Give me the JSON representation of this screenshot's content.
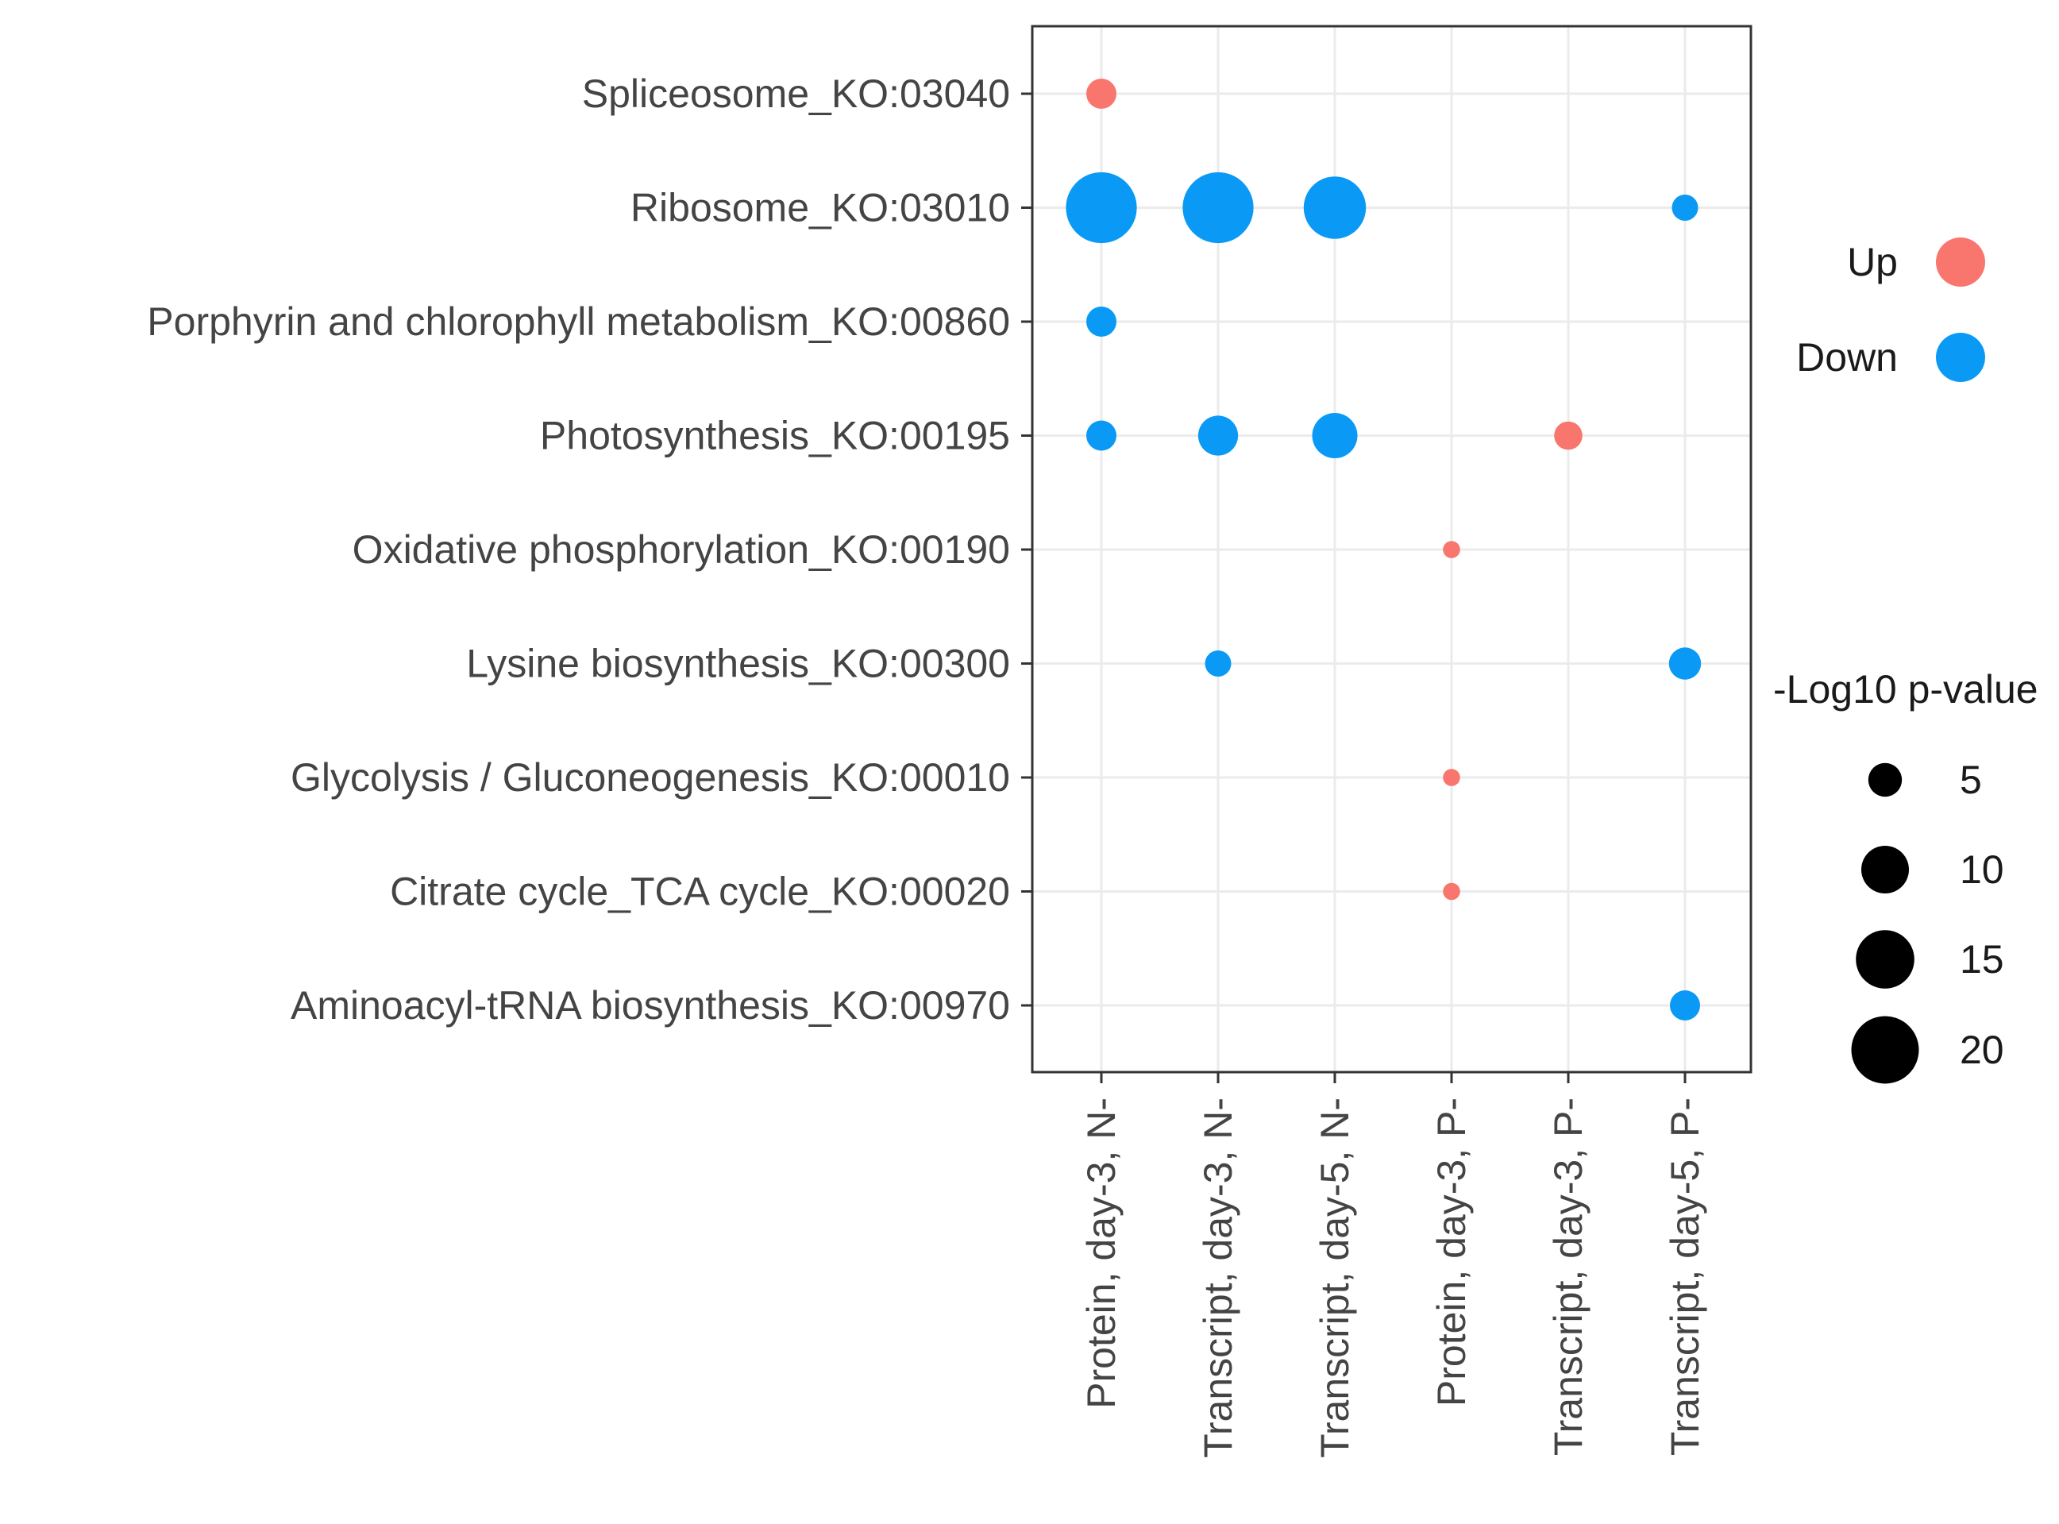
{
  "chart_data": {
    "type": "scatter",
    "title": "",
    "xlabel": "",
    "ylabel": "",
    "grid": true,
    "x_categories": [
      "Protein, day-3, N-",
      "Transcript, day-3, N-",
      "Transcript, day-5, N-",
      "Protein, day-3, P-",
      "Transcript, day-3, P-",
      "Transcript, day-5, P-"
    ],
    "y_categories": [
      "Spliceosome_KO:03040",
      "Ribosome_KO:03010",
      "Porphyrin and chlorophyll metabolism_KO:00860",
      "Photosynthesis_KO:00195",
      "Oxidative phosphorylation_KO:00190",
      "Lysine biosynthesis_KO:00300",
      "Glycolysis / Gluconeogenesis_KO:00010",
      "Citrate cycle_TCA cycle_KO:00020",
      "Aminoacyl-tRNA biosynthesis_KO:00970"
    ],
    "points": [
      {
        "x": "Protein, day-3, N-",
        "y": "Spliceosome_KO:03040",
        "direction": "Up",
        "neg_log10_p": 4
      },
      {
        "x": "Protein, day-3, N-",
        "y": "Ribosome_KO:03010",
        "direction": "Down",
        "neg_log10_p": 22
      },
      {
        "x": "Transcript, day-3, N-",
        "y": "Ribosome_KO:03010",
        "direction": "Down",
        "neg_log10_p": 22
      },
      {
        "x": "Transcript, day-5, N-",
        "y": "Ribosome_KO:03010",
        "direction": "Down",
        "neg_log10_p": 17
      },
      {
        "x": "Transcript, day-5, P-",
        "y": "Ribosome_KO:03010",
        "direction": "Down",
        "neg_log10_p": 3
      },
      {
        "x": "Protein, day-3, N-",
        "y": "Porphyrin and chlorophyll metabolism_KO:00860",
        "direction": "Down",
        "neg_log10_p": 4
      },
      {
        "x": "Protein, day-3, N-",
        "y": "Photosynthesis_KO:00195",
        "direction": "Down",
        "neg_log10_p": 4
      },
      {
        "x": "Transcript, day-3, N-",
        "y": "Photosynthesis_KO:00195",
        "direction": "Down",
        "neg_log10_p": 7
      },
      {
        "x": "Transcript, day-5, N-",
        "y": "Photosynthesis_KO:00195",
        "direction": "Down",
        "neg_log10_p": 9
      },
      {
        "x": "Transcript, day-3, P-",
        "y": "Photosynthesis_KO:00195",
        "direction": "Up",
        "neg_log10_p": 3.5
      },
      {
        "x": "Protein, day-3, P-",
        "y": "Oxidative phosphorylation_KO:00190",
        "direction": "Up",
        "neg_log10_p": 1.3
      },
      {
        "x": "Transcript, day-3, N-",
        "y": "Lysine biosynthesis_KO:00300",
        "direction": "Down",
        "neg_log10_p": 3
      },
      {
        "x": "Transcript, day-5, P-",
        "y": "Lysine biosynthesis_KO:00300",
        "direction": "Down",
        "neg_log10_p": 4.5
      },
      {
        "x": "Protein, day-3, P-",
        "y": "Glycolysis / Gluconeogenesis_KO:00010",
        "direction": "Up",
        "neg_log10_p": 1.3
      },
      {
        "x": "Protein, day-3, P-",
        "y": "Citrate cycle_TCA cycle_KO:00020",
        "direction": "Up",
        "neg_log10_p": 1.3
      },
      {
        "x": "Transcript, day-5, P-",
        "y": "Aminoacyl-tRNA biosynthesis_KO:00970",
        "direction": "Down",
        "neg_log10_p": 4
      }
    ],
    "color_legend": {
      "entries": [
        {
          "label": "Up",
          "color": "#F8766D"
        },
        {
          "label": "Down",
          "color": "#0A9AF5"
        }
      ]
    },
    "size_legend": {
      "title": "-Log10 p-value",
      "values": [
        5,
        10,
        15,
        20
      ],
      "labels": [
        "5",
        "10",
        "15",
        "20"
      ]
    },
    "legend_position": "right"
  }
}
